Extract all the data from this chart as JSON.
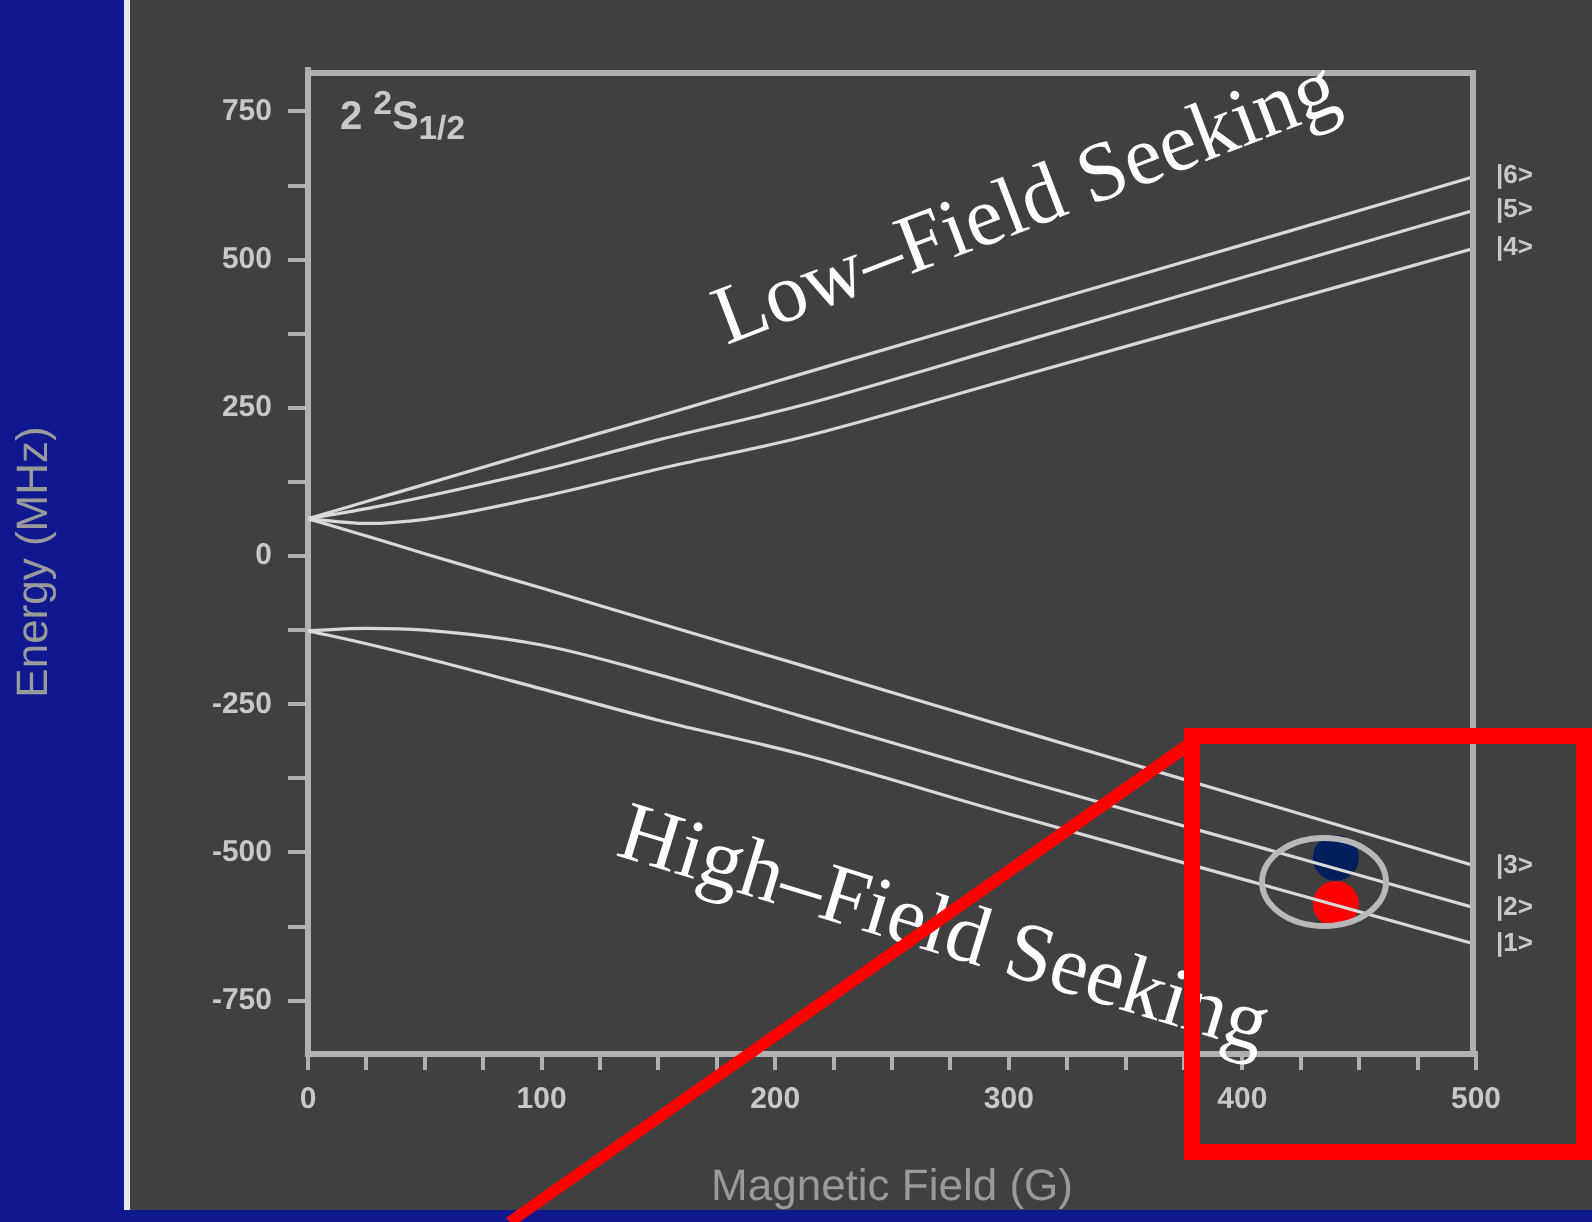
{
  "chart_data": {
    "type": "line",
    "xlabel": "Magnetic Field (G)",
    "ylabel": "Energy (MHz)",
    "annotations": [
      "2 $^{2}$S$_{1/2}$",
      "Low–Field Seeking",
      "High–Field Seeking"
    ],
    "x": [
      0,
      25,
      50,
      100,
      150,
      211,
      300,
      400,
      500
    ],
    "series": [
      {
        "name": "|6>",
        "color": "#d9d9d9",
        "values": [
          63,
          92,
          121,
          179,
          236,
          307,
          410,
          525,
          641
        ]
      },
      {
        "name": "|5>",
        "color": "#d9d9d9",
        "values": [
          63,
          80,
          100,
          145,
          196,
          254,
          355,
          470,
          584
        ]
      },
      {
        "name": "|4>",
        "color": "#d9d9d9",
        "values": [
          63,
          55,
          62,
          100,
          147,
          200,
          298,
          409,
          520
        ]
      },
      {
        "name": "|3>",
        "color": "#d9d9d9",
        "values": [
          63,
          34,
          4,
          -54,
          -113,
          -184,
          -289,
          -406,
          -523
        ]
      },
      {
        "name": "|2>",
        "color": "#d9d9d9",
        "values": [
          -126,
          -122,
          -125,
          -150,
          -200,
          -270,
          -372,
          -483,
          -594
        ]
      },
      {
        "name": "|1>",
        "color": "#d9d9d9",
        "values": [
          -126,
          -148,
          -172,
          -224,
          -277,
          -334,
          -435,
          -545,
          -655
        ]
      },
      {
        "type": "scatter",
        "x": [
          440
        ],
        "color": "#001f5c",
        "values": [
          -509
        ],
        "marker": "circle"
      },
      {
        "type": "scatter",
        "x": [
          440
        ],
        "color": "#ff0000",
        "values": [
          -587
        ],
        "marker": "circle"
      }
    ],
    "xlim": [
      0,
      500
    ],
    "ylim": [
      -840,
      820
    ],
    "xticks": [
      0,
      {
        "value": 25,
        "label": null
      },
      {
        "value": 50,
        "label": null
      },
      {
        "value": 75,
        "label": null
      },
      100,
      {
        "value": 125,
        "label": null
      },
      {
        "value": 150,
        "label": null
      },
      {
        "value": 175,
        "label": null
      },
      200,
      {
        "value": 225,
        "label": null
      },
      {
        "value": 250,
        "label": null
      },
      {
        "value": 275,
        "label": null
      },
      300,
      {
        "value": 325,
        "label": null
      },
      {
        "value": 350,
        "label": null
      },
      {
        "value": 375,
        "label": null
      },
      400,
      {
        "value": 425,
        "label": null
      },
      {
        "value": 450,
        "label": null
      },
      {
        "value": 475,
        "label": null
      },
      500
    ],
    "yticks": [
      -750,
      {
        "value": -625,
        "label": null
      },
      -500,
      {
        "value": -375,
        "label": null
      },
      -250,
      {
        "value": -125,
        "label": null
      },
      0,
      {
        "value": 125,
        "label": null
      },
      250,
      {
        "value": 375,
        "label": null
      },
      500,
      {
        "value": 625,
        "label": null
      },
      750
    ],
    "grid": false,
    "legend": false,
    "marker": "none",
    "line_style": "solid"
  }
}
